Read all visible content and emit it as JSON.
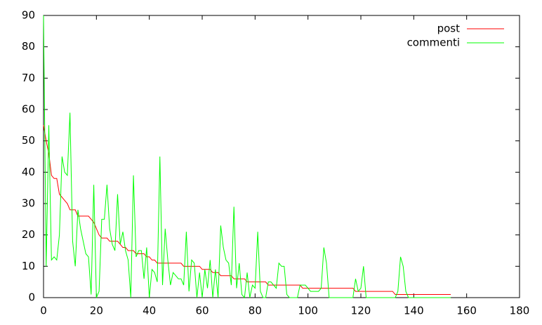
{
  "chart_data": {
    "type": "line",
    "x": [
      0,
      1,
      2,
      3,
      4,
      5,
      6,
      7,
      8,
      9,
      10,
      11,
      12,
      13,
      14,
      15,
      16,
      17,
      18,
      19,
      20,
      21,
      22,
      23,
      24,
      25,
      26,
      27,
      28,
      29,
      30,
      31,
      32,
      33,
      34,
      35,
      36,
      37,
      38,
      39,
      40,
      41,
      42,
      43,
      44,
      45,
      46,
      47,
      48,
      49,
      50,
      51,
      52,
      53,
      54,
      55,
      56,
      57,
      58,
      59,
      60,
      61,
      62,
      63,
      64,
      65,
      66,
      67,
      68,
      69,
      70,
      71,
      72,
      73,
      74,
      75,
      76,
      77,
      78,
      79,
      80,
      81,
      82,
      83,
      84,
      85,
      86,
      87,
      88,
      89,
      90,
      91,
      92,
      93,
      94,
      95,
      96,
      97,
      98,
      99,
      100,
      101,
      102,
      103,
      104,
      105,
      106,
      107,
      108,
      109,
      110,
      111,
      112,
      113,
      114,
      115,
      116,
      117,
      118,
      119,
      120,
      121,
      122,
      123,
      124,
      125,
      126,
      127,
      128,
      129,
      130,
      131,
      132,
      133,
      134,
      135,
      136,
      137,
      138,
      139,
      140,
      141,
      142,
      143,
      144,
      145,
      146,
      147,
      148,
      149,
      150,
      151,
      152,
      153,
      154
    ],
    "series": [
      {
        "name": "post",
        "color": "#ff0000",
        "values": [
          55,
          50,
          46,
          39,
          38,
          38,
          33,
          32,
          31,
          30,
          28,
          28,
          28,
          26,
          26,
          26,
          26,
          26,
          25,
          24,
          22,
          20,
          19,
          19,
          19,
          18,
          18,
          18,
          18,
          17,
          16,
          16,
          15,
          15,
          15,
          14,
          14,
          14,
          14,
          13,
          13,
          12,
          12,
          11,
          11,
          11,
          11,
          11,
          11,
          11,
          11,
          11,
          11,
          10,
          10,
          10,
          10,
          10,
          10,
          10,
          9,
          9,
          9,
          9,
          8,
          8,
          8,
          7,
          7,
          7,
          7,
          7,
          6,
          6,
          6,
          6,
          6,
          5,
          5,
          5,
          5,
          5,
          5,
          5,
          5,
          4,
          4,
          4,
          4,
          4,
          4,
          4,
          4,
          4,
          4,
          4,
          4,
          4,
          3,
          3,
          3,
          3,
          3,
          3,
          3,
          3,
          3,
          3,
          3,
          3,
          3,
          3,
          3,
          3,
          3,
          3,
          3,
          3,
          2,
          2,
          2,
          2,
          2,
          2,
          2,
          2,
          2,
          2,
          2,
          2,
          2,
          2,
          2,
          1,
          1,
          1,
          1,
          1,
          1,
          1,
          1,
          1,
          1,
          1,
          1,
          1,
          1,
          1,
          1,
          1,
          1,
          1,
          1,
          1,
          1
        ]
      },
      {
        "name": "commenti",
        "color": "#00ff00",
        "values": [
          90,
          10,
          55,
          12,
          13,
          12,
          20,
          45,
          40,
          39,
          59,
          18,
          10,
          28,
          22,
          18,
          14,
          13,
          1,
          36,
          0,
          2,
          25,
          25,
          36,
          22,
          17,
          15,
          33,
          17,
          21,
          15,
          12,
          0,
          39,
          13,
          15,
          15,
          6,
          16,
          0,
          9,
          8,
          5,
          45,
          4,
          22,
          12,
          4,
          8,
          7,
          6,
          6,
          4,
          21,
          2,
          12,
          11,
          0,
          8,
          0,
          9,
          3,
          12,
          0,
          9,
          0,
          23,
          16,
          12,
          11,
          4,
          29,
          3,
          11,
          1,
          0,
          8,
          0,
          4,
          3,
          21,
          2,
          0,
          0,
          5,
          5,
          4,
          3,
          11,
          10,
          10,
          1,
          0,
          0,
          0,
          0,
          4,
          4,
          4,
          3,
          2,
          2,
          2,
          2,
          3,
          16,
          11,
          0,
          0,
          0,
          0,
          0,
          0,
          0,
          0,
          0,
          0,
          6,
          2,
          3,
          10,
          0,
          0,
          0,
          0,
          0,
          0,
          0,
          0,
          0,
          0,
          0,
          0,
          2,
          13,
          10,
          2,
          0,
          0,
          0,
          0,
          0,
          0,
          0,
          0,
          0,
          0,
          0,
          0,
          0,
          0,
          0,
          0,
          0
        ]
      }
    ],
    "xlim": [
      0,
      180
    ],
    "xticks": [
      0,
      20,
      40,
      60,
      80,
      100,
      120,
      140,
      160,
      180
    ],
    "ylim": [
      0,
      90
    ],
    "yticks": [
      0,
      10,
      20,
      30,
      40,
      50,
      60,
      70,
      80,
      90
    ],
    "legend": "top-right"
  }
}
